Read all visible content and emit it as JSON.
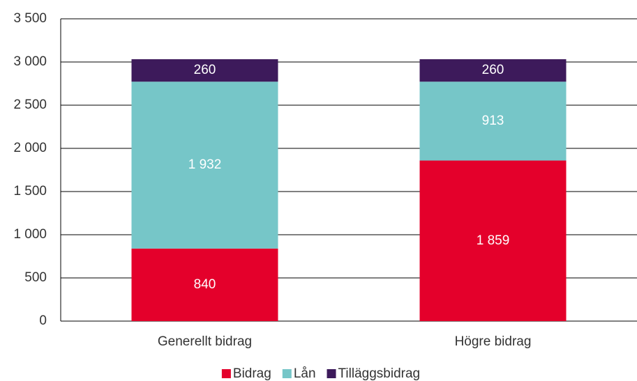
{
  "chart_data": {
    "type": "stacked_bar",
    "categories": [
      "Generellt bidrag",
      "Högre bidrag"
    ],
    "series": [
      {
        "name": "Bidrag",
        "color": "#e4002b",
        "values": [
          840,
          1859
        ],
        "value_labels": [
          "840",
          "1 859"
        ]
      },
      {
        "name": "Lån",
        "color": "#76c6c8",
        "values": [
          1932,
          913
        ],
        "value_labels": [
          "1 932",
          "913"
        ]
      },
      {
        "name": "Tilläggsbidrag",
        "color": "#3d1a5b",
        "values": [
          260,
          260
        ],
        "value_labels": [
          "260",
          "260"
        ]
      }
    ],
    "ylim": [
      0,
      3500
    ],
    "yticks": [
      0,
      {
        "value": 500,
        "label": "500"
      },
      {
        "value": 1000,
        "label": "1 000"
      },
      {
        "value": 1500,
        "label": "1 500"
      },
      {
        "value": 2000,
        "label": "2 000"
      },
      {
        "value": 2500,
        "label": "2 500"
      },
      {
        "value": 3000,
        "label": "3 000"
      },
      {
        "value": 3500,
        "label": "3 500"
      }
    ],
    "grid": true,
    "legend": "bottom"
  }
}
